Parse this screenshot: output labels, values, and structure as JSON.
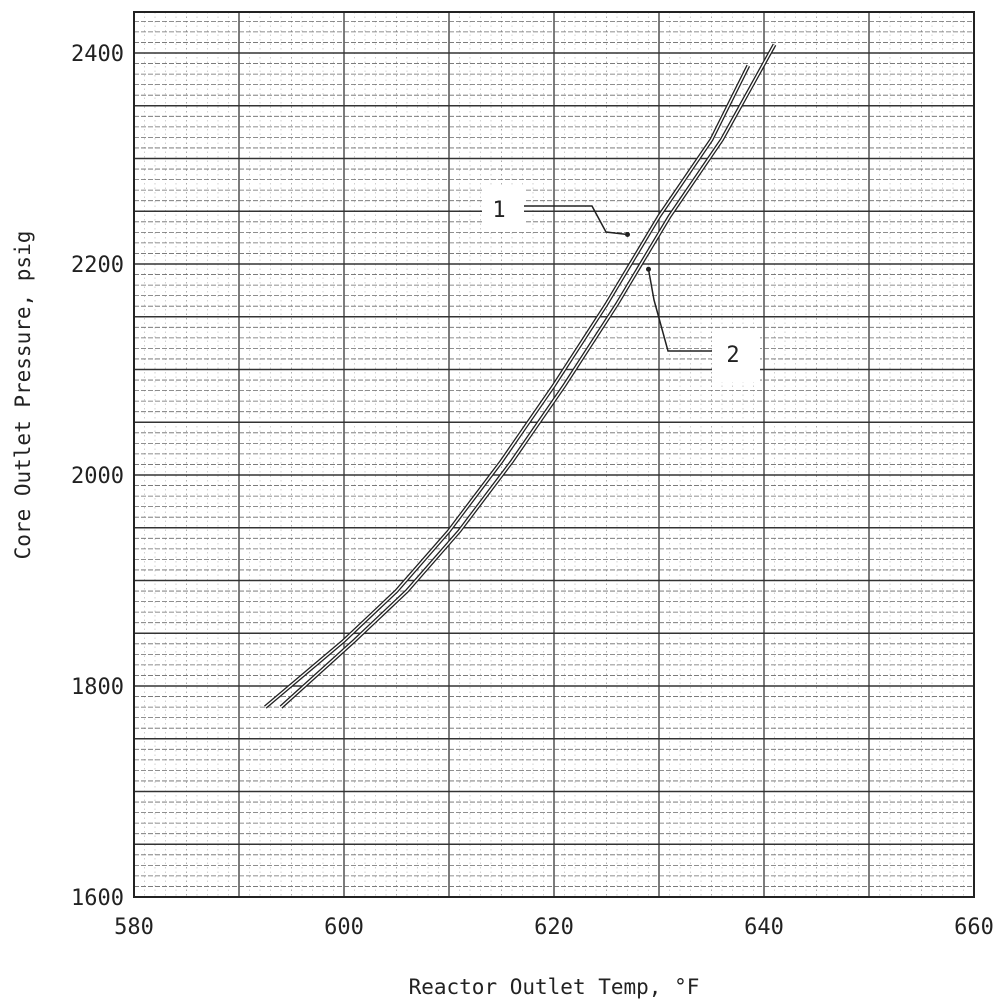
{
  "chart_data": {
    "type": "line",
    "title": "",
    "xlabel": "Reactor Outlet Temp, °F",
    "ylabel": "Core Outlet Pressure, psig",
    "xlim": [
      580,
      660
    ],
    "ylim": [
      1600,
      2450
    ],
    "x_ticks": [
      "580",
      "600",
      "620",
      "640",
      "660"
    ],
    "y_ticks": [
      "1600",
      "1800",
      "2000",
      "2200",
      "2400"
    ],
    "grid": true,
    "series": [
      {
        "name": "1",
        "points": [
          [
            592.5,
            1780
          ],
          [
            600,
            1843
          ],
          [
            605,
            1890
          ],
          [
            610,
            1947
          ],
          [
            615,
            2013
          ],
          [
            620,
            2085
          ],
          [
            625,
            2162
          ],
          [
            630,
            2245
          ],
          [
            635,
            2318
          ],
          [
            638.5,
            2388
          ]
        ]
      },
      {
        "name": "2",
        "points": [
          [
            594,
            1780
          ],
          [
            601,
            1843
          ],
          [
            606,
            1890
          ],
          [
            611,
            1947
          ],
          [
            616,
            2013
          ],
          [
            621,
            2085
          ],
          [
            626,
            2162
          ],
          [
            631,
            2245
          ],
          [
            636,
            2318
          ],
          [
            641,
            2408
          ]
        ]
      }
    ],
    "annotations": [
      {
        "label": "1",
        "target": [
          627,
          2228
        ]
      },
      {
        "label": "2",
        "target": [
          629,
          2195
        ]
      }
    ]
  }
}
